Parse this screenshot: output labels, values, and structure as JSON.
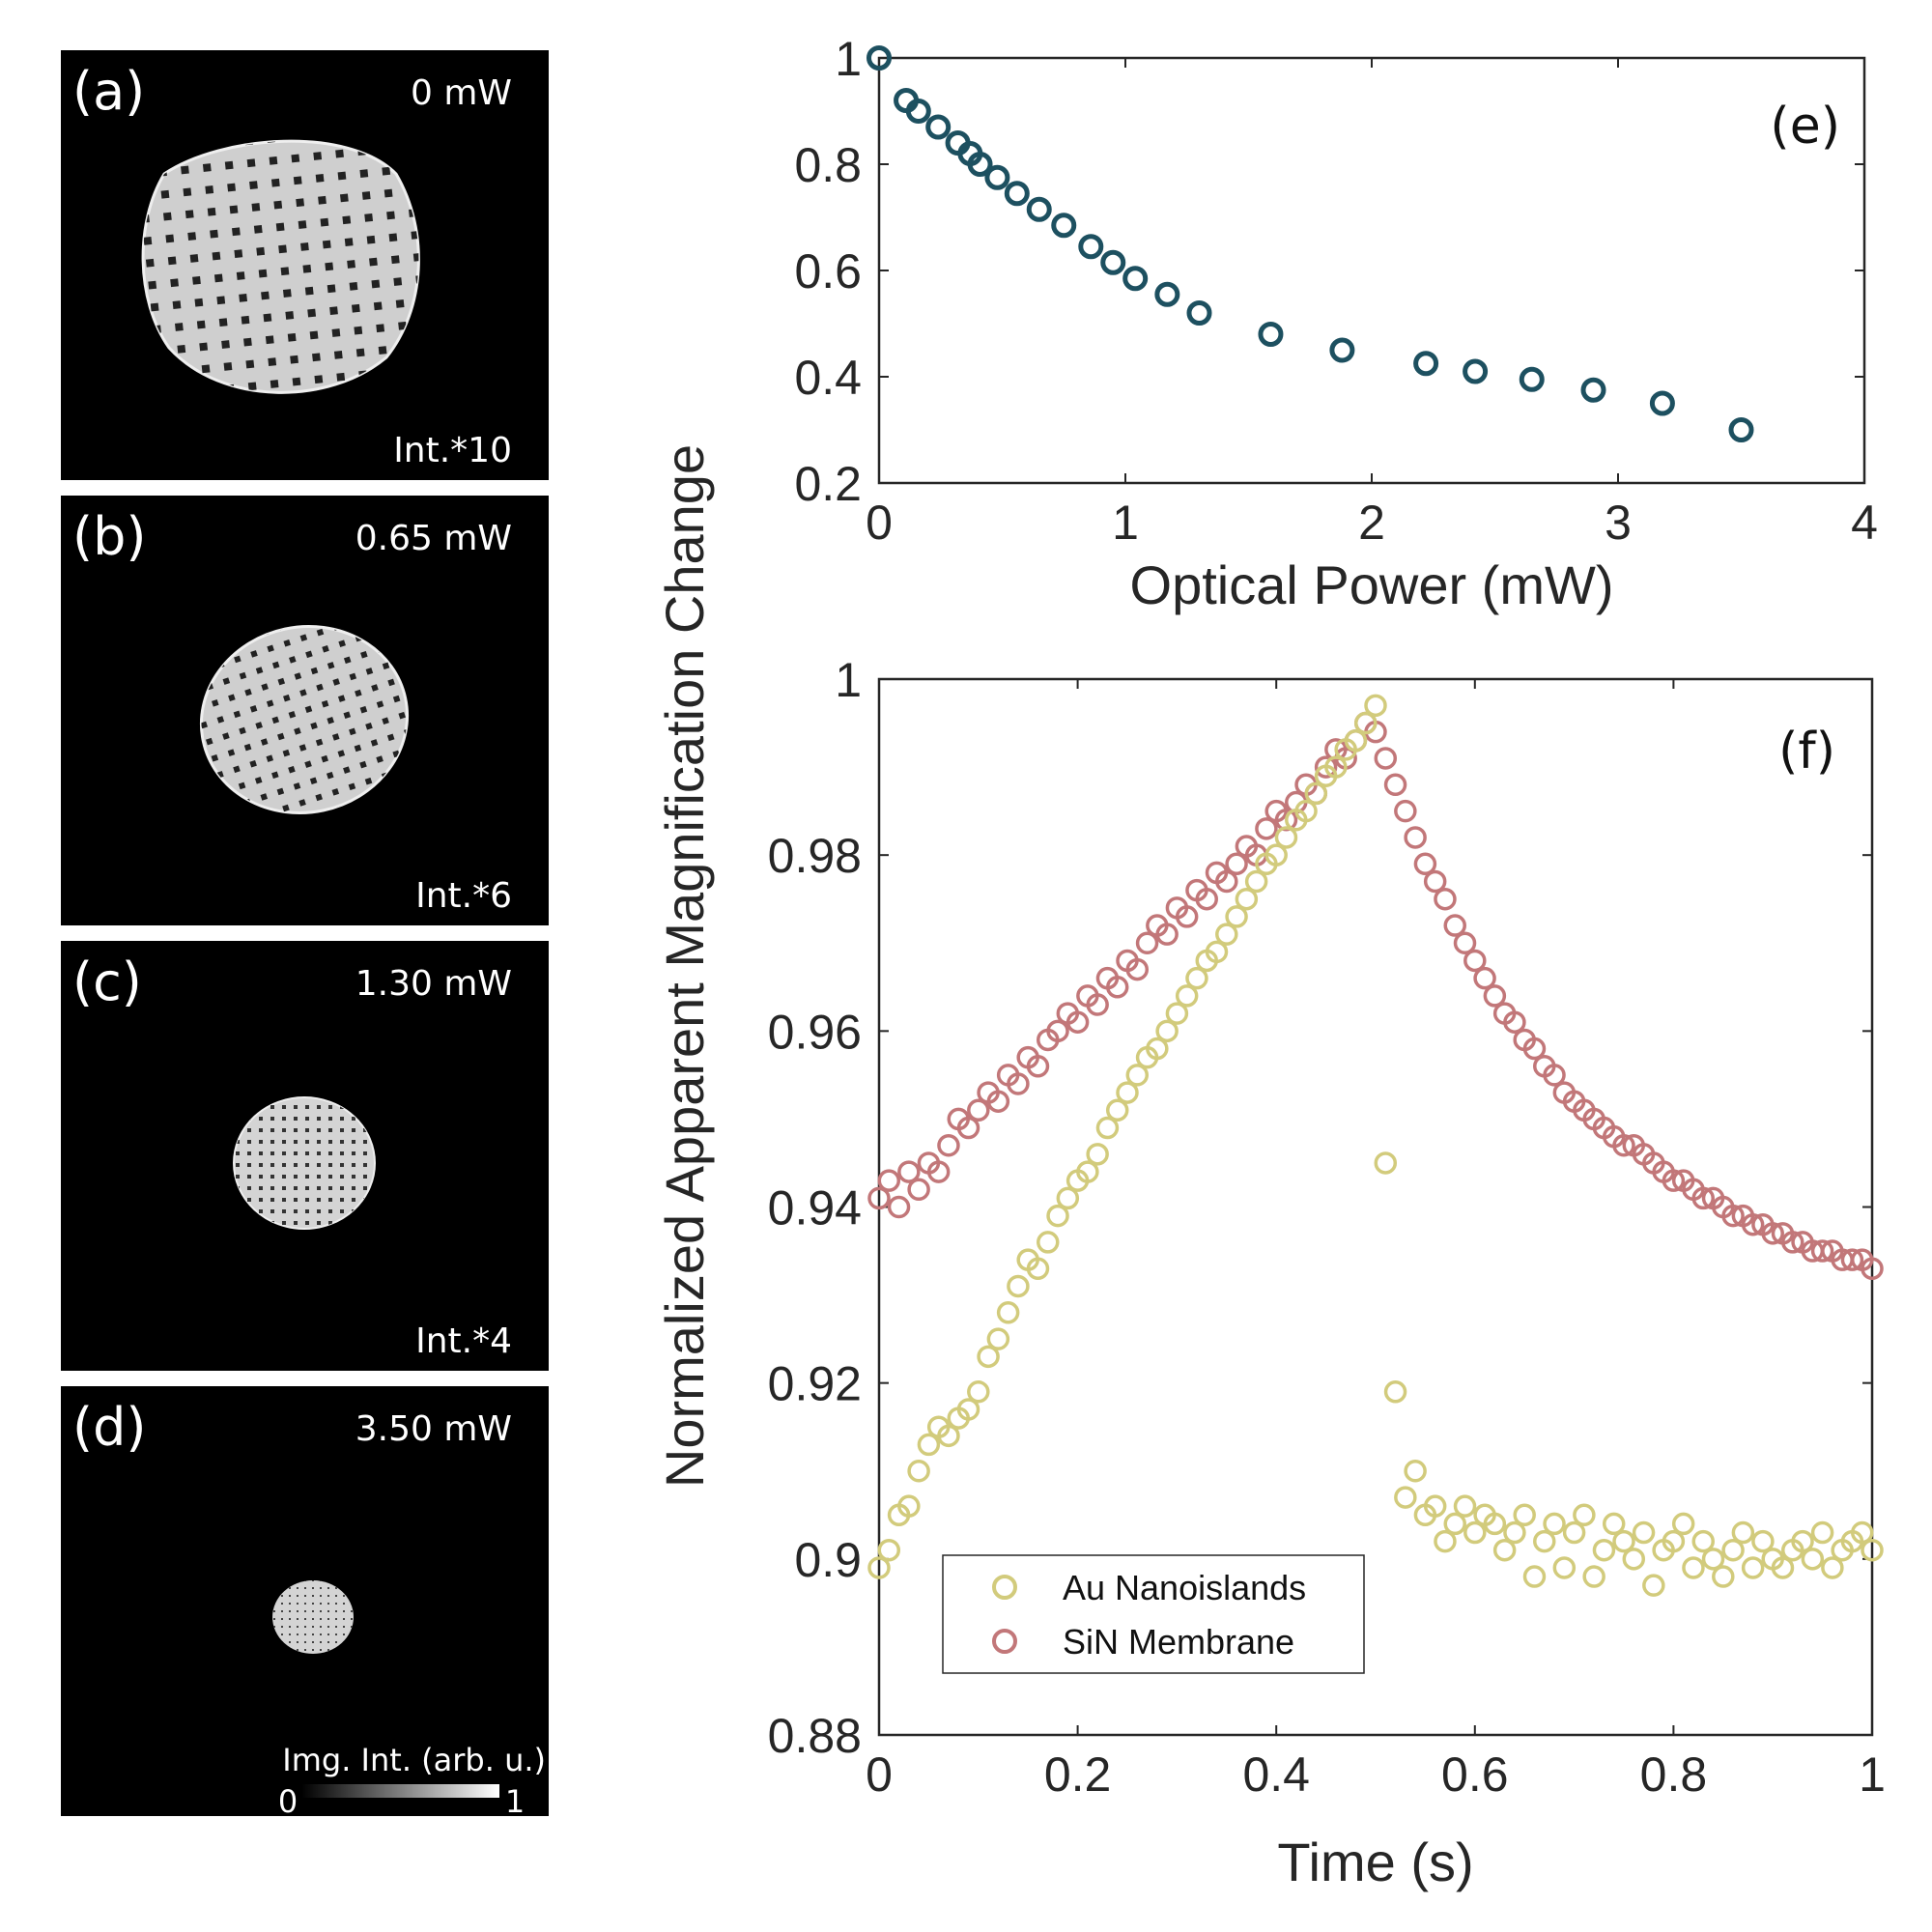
{
  "micrographs": [
    {
      "tag": "(a)",
      "power": "0 mW",
      "scale": "Int.*10"
    },
    {
      "tag": "(b)",
      "power": "0.65 mW",
      "scale": "Int.*6"
    },
    {
      "tag": "(c)",
      "power": "1.30 mW",
      "scale": "Int.*4"
    },
    {
      "tag": "(d)",
      "power": "3.50 mW",
      "scale": ""
    }
  ],
  "colorbar": {
    "label": "Img. Int. (arb. u.)",
    "min": "0",
    "max": "1"
  },
  "colors": {
    "panel_e_marker": "#1d5060",
    "au": "#d2cb7c",
    "sin": "#c27779",
    "axis": "#262626"
  },
  "shared_ylabel": "Normalized Apparent Magnification Change",
  "chart_data": [
    {
      "id": "e",
      "type": "scatter",
      "tag": "(e)",
      "title": "",
      "xlabel": "Optical Power (mW)",
      "ylabel": "Normalized Apparent Magnification Change",
      "xlim": [
        0,
        4
      ],
      "ylim": [
        0.2,
        1
      ],
      "xticks": [
        0,
        1,
        2,
        3,
        4
      ],
      "yticks": [
        0.2,
        0.4,
        0.6,
        0.8,
        1
      ],
      "x": [
        0,
        0.11,
        0.16,
        0.24,
        0.32,
        0.37,
        0.41,
        0.48,
        0.56,
        0.65,
        0.75,
        0.86,
        0.95,
        1.04,
        1.17,
        1.3,
        1.59,
        1.88,
        2.22,
        2.42,
        2.65,
        2.9,
        3.18,
        3.5
      ],
      "y": [
        1.0,
        0.92,
        0.9,
        0.87,
        0.84,
        0.82,
        0.8,
        0.775,
        0.745,
        0.715,
        0.685,
        0.645,
        0.615,
        0.585,
        0.555,
        0.52,
        0.48,
        0.45,
        0.425,
        0.41,
        0.395,
        0.375,
        0.35,
        0.3
      ]
    },
    {
      "id": "f",
      "type": "scatter",
      "tag": "(f)",
      "title": "",
      "xlabel": "Time (s)",
      "ylabel": "Normalized Apparent Magnification Change",
      "xlim": [
        0,
        1
      ],
      "ylim": [
        0.88,
        1
      ],
      "xticks": [
        0,
        0.2,
        0.4,
        0.6,
        0.8,
        1
      ],
      "yticks": [
        0.88,
        0.9,
        0.92,
        0.94,
        0.96,
        0.98,
        1
      ],
      "legend_position": "bottom-left",
      "series": [
        {
          "name": "Au Nanoislands",
          "x": [
            0.0,
            0.01,
            0.02,
            0.03,
            0.04,
            0.05,
            0.06,
            0.07,
            0.08,
            0.09,
            0.1,
            0.11,
            0.12,
            0.13,
            0.14,
            0.15,
            0.16,
            0.17,
            0.18,
            0.19,
            0.2,
            0.21,
            0.22,
            0.23,
            0.24,
            0.25,
            0.26,
            0.27,
            0.28,
            0.29,
            0.3,
            0.31,
            0.32,
            0.33,
            0.34,
            0.35,
            0.36,
            0.37,
            0.38,
            0.39,
            0.4,
            0.41,
            0.42,
            0.43,
            0.44,
            0.45,
            0.46,
            0.47,
            0.48,
            0.49,
            0.5,
            0.51,
            0.52,
            0.53,
            0.54,
            0.55,
            0.56,
            0.57,
            0.58,
            0.59,
            0.6,
            0.61,
            0.62,
            0.63,
            0.64,
            0.65,
            0.66,
            0.67,
            0.68,
            0.69,
            0.7,
            0.71,
            0.72,
            0.73,
            0.74,
            0.75,
            0.76,
            0.77,
            0.78,
            0.79,
            0.8,
            0.81,
            0.82,
            0.83,
            0.84,
            0.85,
            0.86,
            0.87,
            0.88,
            0.89,
            0.9,
            0.91,
            0.92,
            0.93,
            0.94,
            0.95,
            0.96,
            0.97,
            0.98,
            0.99,
            1.0
          ],
          "y": [
            0.899,
            0.901,
            0.905,
            0.906,
            0.91,
            0.913,
            0.915,
            0.914,
            0.916,
            0.917,
            0.919,
            0.923,
            0.925,
            0.928,
            0.931,
            0.934,
            0.933,
            0.936,
            0.939,
            0.941,
            0.943,
            0.944,
            0.946,
            0.949,
            0.951,
            0.953,
            0.955,
            0.957,
            0.958,
            0.96,
            0.962,
            0.964,
            0.966,
            0.968,
            0.969,
            0.971,
            0.973,
            0.975,
            0.977,
            0.979,
            0.98,
            0.982,
            0.984,
            0.985,
            0.987,
            0.989,
            0.99,
            0.992,
            0.993,
            0.995,
            0.997,
            0.945,
            0.919,
            0.907,
            0.91,
            0.905,
            0.906,
            0.902,
            0.904,
            0.906,
            0.903,
            0.905,
            0.904,
            0.901,
            0.903,
            0.905,
            0.898,
            0.902,
            0.904,
            0.899,
            0.903,
            0.905,
            0.898,
            0.901,
            0.904,
            0.902,
            0.9,
            0.903,
            0.897,
            0.901,
            0.902,
            0.904,
            0.899,
            0.902,
            0.9,
            0.898,
            0.901,
            0.903,
            0.899,
            0.902,
            0.9,
            0.899,
            0.901,
            0.902,
            0.9,
            0.903,
            0.899,
            0.901,
            0.902,
            0.903,
            0.901
          ]
        },
        {
          "name": "SiN Membrane",
          "x": [
            0.0,
            0.01,
            0.02,
            0.03,
            0.04,
            0.05,
            0.06,
            0.07,
            0.08,
            0.09,
            0.1,
            0.11,
            0.12,
            0.13,
            0.14,
            0.15,
            0.16,
            0.17,
            0.18,
            0.19,
            0.2,
            0.21,
            0.22,
            0.23,
            0.24,
            0.25,
            0.26,
            0.27,
            0.28,
            0.29,
            0.3,
            0.31,
            0.32,
            0.33,
            0.34,
            0.35,
            0.36,
            0.37,
            0.38,
            0.39,
            0.4,
            0.41,
            0.42,
            0.43,
            0.44,
            0.45,
            0.46,
            0.47,
            0.48,
            0.49,
            0.5,
            0.51,
            0.52,
            0.53,
            0.54,
            0.55,
            0.56,
            0.57,
            0.58,
            0.59,
            0.6,
            0.61,
            0.62,
            0.63,
            0.64,
            0.65,
            0.66,
            0.67,
            0.68,
            0.69,
            0.7,
            0.71,
            0.72,
            0.73,
            0.74,
            0.75,
            0.76,
            0.77,
            0.78,
            0.79,
            0.8,
            0.81,
            0.82,
            0.83,
            0.84,
            0.85,
            0.86,
            0.87,
            0.88,
            0.89,
            0.9,
            0.91,
            0.92,
            0.93,
            0.94,
            0.95,
            0.96,
            0.97,
            0.98,
            0.99,
            1.0
          ],
          "y": [
            0.941,
            0.943,
            0.94,
            0.944,
            0.942,
            0.945,
            0.944,
            0.947,
            0.95,
            0.949,
            0.951,
            0.953,
            0.952,
            0.955,
            0.954,
            0.957,
            0.956,
            0.959,
            0.96,
            0.962,
            0.961,
            0.964,
            0.963,
            0.966,
            0.965,
            0.968,
            0.967,
            0.97,
            0.972,
            0.971,
            0.974,
            0.973,
            0.976,
            0.975,
            0.978,
            0.977,
            0.979,
            0.981,
            0.98,
            0.983,
            0.985,
            0.984,
            0.986,
            0.988,
            0.987,
            0.99,
            0.992,
            0.991,
            0.993,
            0.995,
            0.994,
            0.991,
            0.988,
            0.985,
            0.982,
            0.979,
            0.977,
            0.975,
            0.972,
            0.97,
            0.968,
            0.966,
            0.964,
            0.962,
            0.961,
            0.959,
            0.958,
            0.956,
            0.955,
            0.953,
            0.952,
            0.951,
            0.95,
            0.949,
            0.948,
            0.947,
            0.947,
            0.946,
            0.945,
            0.944,
            0.943,
            0.943,
            0.942,
            0.941,
            0.941,
            0.94,
            0.939,
            0.939,
            0.938,
            0.938,
            0.937,
            0.937,
            0.936,
            0.936,
            0.935,
            0.935,
            0.935,
            0.934,
            0.934,
            0.934,
            0.933
          ]
        }
      ]
    }
  ]
}
